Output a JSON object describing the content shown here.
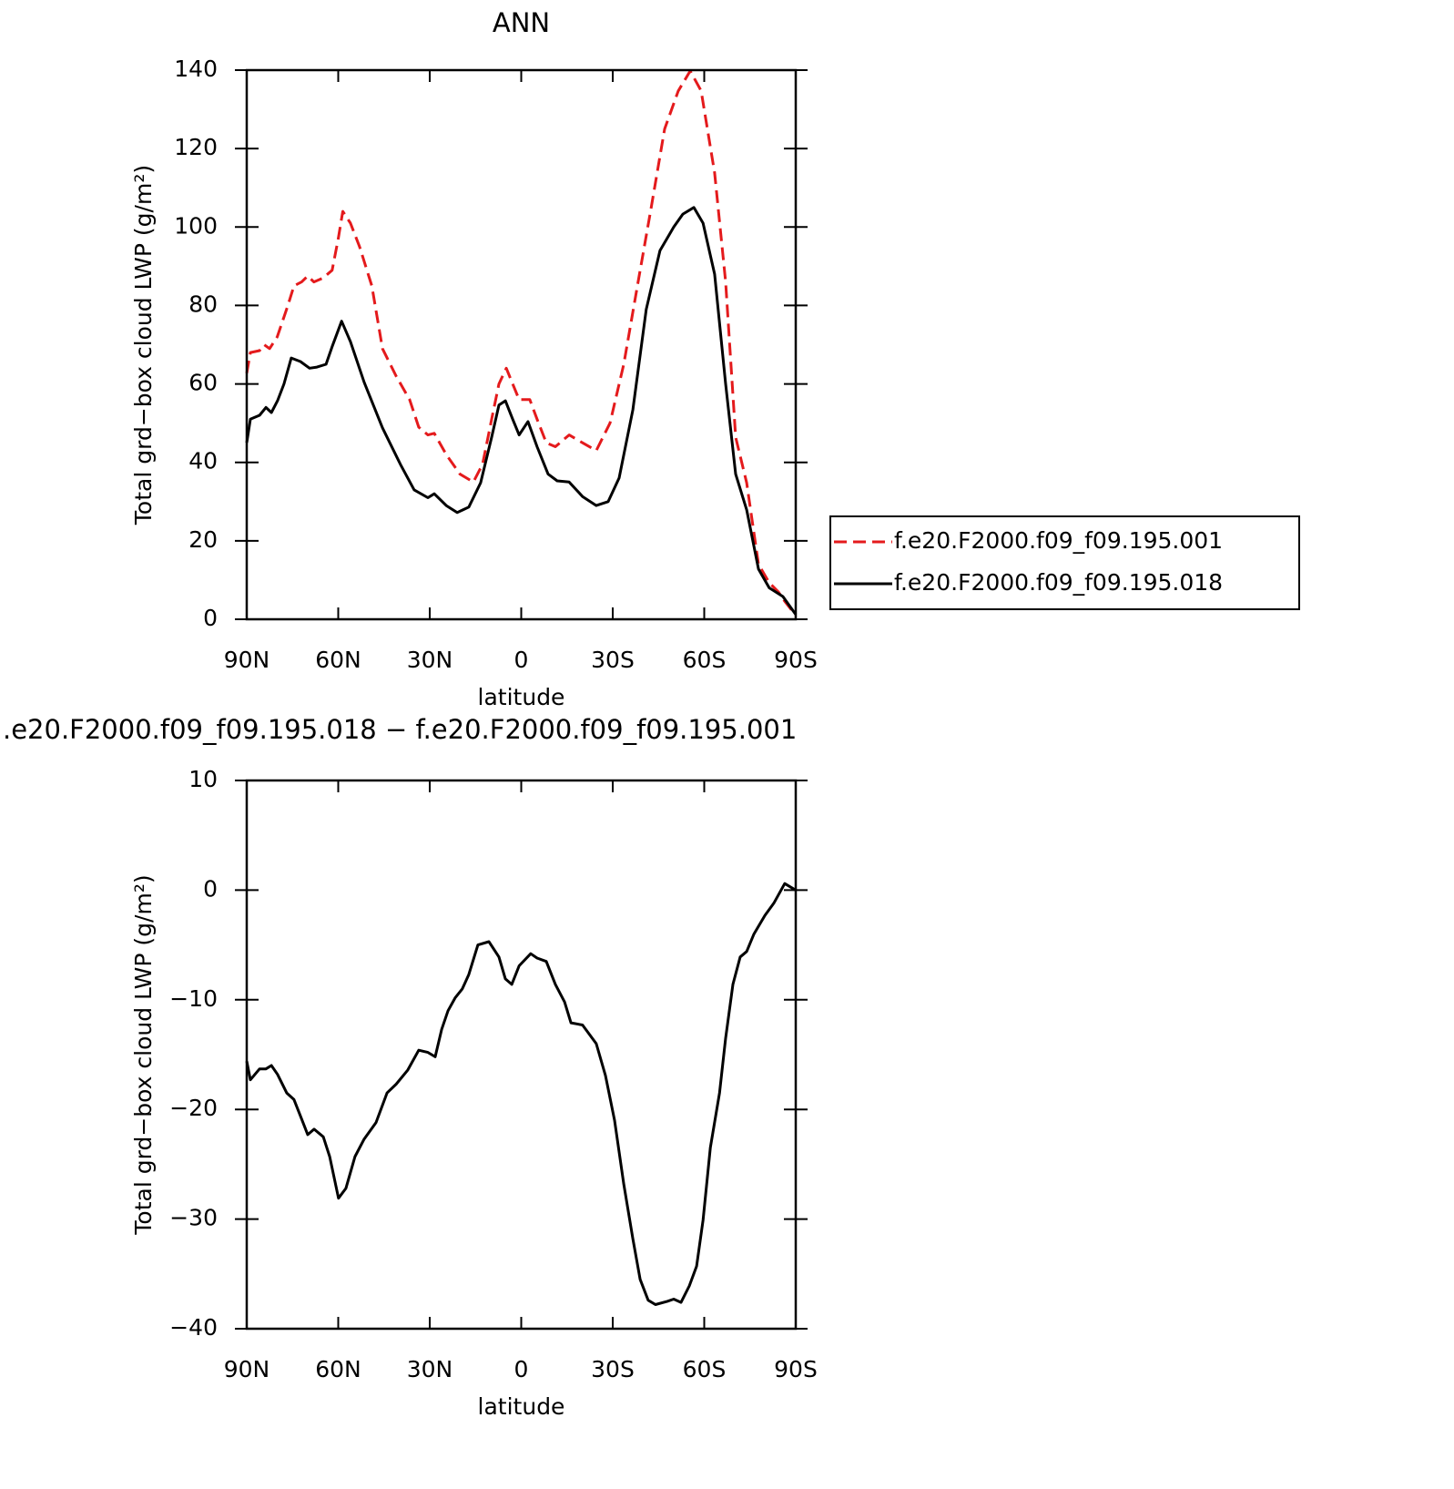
{
  "chart_data": [
    {
      "type": "line",
      "title": "ANN",
      "x_label": "latitude",
      "y_label": "Total grd−box cloud LWP (g/m²)",
      "xlim": [
        90,
        -90
      ],
      "xticks": [
        {
          "value": 90,
          "label": "90N"
        },
        {
          "value": 60,
          "label": "60N"
        },
        {
          "value": 30,
          "label": "30N"
        },
        0,
        {
          "value": -30,
          "label": "30S"
        },
        {
          "value": -60,
          "label": "60S"
        },
        {
          "value": -90,
          "label": "90S"
        }
      ],
      "ylim": [
        0,
        140
      ],
      "yticks": [
        0,
        20,
        40,
        60,
        80,
        100,
        120,
        140
      ],
      "legend": "right",
      "series": [
        {
          "name": "f.e20.F2000.f09_f09.195.001",
          "color": "#e41a1c",
          "dash": true,
          "x": [
            90,
            88.8,
            85.8,
            84.3,
            82.5,
            80,
            76.5,
            74.5,
            72,
            70,
            68,
            65,
            62,
            60,
            58.5,
            56,
            53,
            49,
            45.5,
            41,
            36.6,
            33.6,
            30.6,
            28.5,
            24.6,
            20.1,
            15.7,
            12.7,
            9.7,
            7.3,
            4.9,
            2.8,
            0.7,
            -2.8,
            -5.2,
            -8.2,
            -11.2,
            -15.7,
            -20.1,
            -24.6,
            -29.1,
            -33.6,
            -38.1,
            -42.5,
            -47,
            -51.5,
            -55.4,
            -59,
            -63.4,
            -67,
            -70.3,
            -73.9,
            -77.8,
            -81.3,
            -84.3,
            -86.4,
            -90
          ],
          "values": [
            62.7,
            68,
            68.5,
            70,
            69,
            72,
            80,
            85,
            86,
            87.5,
            86,
            87,
            89,
            97,
            104,
            101,
            95,
            85,
            69,
            62,
            56,
            49,
            47,
            47.4,
            42,
            37,
            35,
            39.5,
            51,
            60,
            64,
            60,
            56,
            56,
            51,
            45,
            44,
            47,
            45,
            43,
            50,
            65,
            85,
            104.5,
            125,
            134.7,
            139.8,
            134.7,
            113.8,
            86,
            46.4,
            34.8,
            14,
            9.3,
            7,
            4.6,
            1
          ]
        },
        {
          "name": "f.e20.F2000.f09_f09.195.018",
          "color": "#000000",
          "dash": false,
          "x": [
            90,
            88.8,
            85.8,
            83.7,
            81.9,
            79.9,
            77.8,
            75.4,
            72.4,
            69.4,
            67,
            64,
            61.9,
            58.9,
            56,
            51.5,
            45.5,
            39.6,
            35.1,
            30.6,
            28.5,
            24.6,
            21,
            17.2,
            13.3,
            9.7,
            7.3,
            5.2,
            2.8,
            0.7,
            -2.2,
            -5.2,
            -8.8,
            -11.8,
            -15.7,
            -20.1,
            -24.6,
            -28.5,
            -32.1,
            -36.6,
            -41,
            -45.5,
            -50,
            -53,
            -56.6,
            -59.6,
            -63.4,
            -67,
            -70.3,
            -73.9,
            -77.8,
            -81.3,
            -85.8,
            -90
          ],
          "values": [
            45,
            51,
            52,
            54,
            52.7,
            55.7,
            60,
            66.6,
            65.7,
            64,
            64.3,
            65,
            69.7,
            76,
            70.8,
            60.4,
            48.8,
            39.5,
            33,
            31,
            32,
            29,
            27.2,
            28.6,
            34.8,
            46.4,
            54.6,
            55.7,
            51,
            47,
            50.4,
            44,
            37,
            35.3,
            35,
            31.3,
            29,
            30,
            36,
            53.4,
            79,
            94,
            100,
            103.3,
            105,
            101,
            88,
            60,
            37,
            27.9,
            12.8,
            8,
            5.8,
            1.2
          ]
        }
      ]
    },
    {
      "type": "line",
      "title": ".e20.F2000.f09_f09.195.018 − f.e20.F2000.f09_f09.195.001",
      "x_label": "latitude",
      "y_label": "Total grd−box cloud LWP (g/m²)",
      "xlim": [
        90,
        -90
      ],
      "xticks": [
        {
          "value": 90,
          "label": "90N"
        },
        {
          "value": 60,
          "label": "60N"
        },
        {
          "value": 30,
          "label": "30N"
        },
        0,
        {
          "value": -30,
          "label": "30S"
        },
        {
          "value": -60,
          "label": "60S"
        },
        {
          "value": -90,
          "label": "90S"
        }
      ],
      "ylim": [
        -40,
        10
      ],
      "yticks": [
        {
          "value": -40,
          "label": "−40"
        },
        {
          "value": -30,
          "label": "−30"
        },
        {
          "value": -20,
          "label": "−20"
        },
        {
          "value": -10,
          "label": "−10"
        },
        0,
        10
      ],
      "series": [
        {
          "color": "#000000",
          "dash": false,
          "x": [
            90,
            88.8,
            85.8,
            83.7,
            81.9,
            79.9,
            76.9,
            74.5,
            72.4,
            70,
            67.9,
            64.9,
            62.8,
            59.9,
            57.5,
            54.5,
            51.5,
            47.6,
            44,
            41,
            37.2,
            33.6,
            30.6,
            28.2,
            26.1,
            24,
            21.6,
            19.3,
            17.2,
            14.2,
            10.6,
            7.3,
            5.2,
            3.1,
            0.7,
            -3.1,
            -5.2,
            -8.2,
            -11.2,
            -14.2,
            -16.3,
            -20.1,
            -24.6,
            -27.6,
            -30.6,
            -33.6,
            -36.6,
            -39,
            -41.6,
            -44,
            -47.9,
            -50,
            -52.4,
            -55.1,
            -57.5,
            -59.6,
            -62,
            -65,
            -67,
            -69.4,
            -71.8,
            -73.9,
            -76.3,
            -79.9,
            -82.8,
            -86.4,
            -90
          ],
          "values": [
            -15.6,
            -17.3,
            -16.3,
            -16.3,
            -16,
            -16.8,
            -18.5,
            -19.1,
            -20.6,
            -22.3,
            -21.8,
            -22.5,
            -24.3,
            -28.1,
            -27.2,
            -24.3,
            -22.7,
            -21.2,
            -18.5,
            -17.7,
            -16.4,
            -14.6,
            -14.8,
            -15.2,
            -12.7,
            -11,
            -9.8,
            -9,
            -7.7,
            -5,
            -4.7,
            -6.1,
            -8.1,
            -8.6,
            -6.9,
            -5.8,
            -6.2,
            -6.5,
            -8.6,
            -10.2,
            -12.1,
            -12.3,
            -14,
            -16.9,
            -21,
            -26.8,
            -31.8,
            -35.5,
            -37.4,
            -37.8,
            -37.5,
            -37.3,
            -37.6,
            -36.1,
            -34.3,
            -30.1,
            -23.5,
            -18.5,
            -13.5,
            -8.6,
            -6.1,
            -5.6,
            -4,
            -2.3,
            -1.2,
            0.6,
            0
          ]
        }
      ]
    }
  ]
}
